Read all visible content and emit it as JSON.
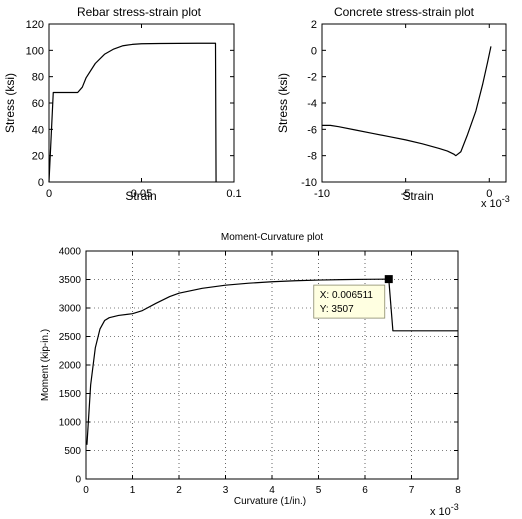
{
  "chart_data": [
    {
      "id": "rebar",
      "type": "line",
      "title": "Rebar stress-strain plot",
      "xlabel": "Strain",
      "ylabel": "Stress (ksi)",
      "xlim": [
        0,
        0.1
      ],
      "ylim": [
        0,
        120
      ],
      "x_ticks": [
        0,
        0.05,
        0.1
      ],
      "x_tick_labels": [
        "0",
        "0.05",
        "0.1"
      ],
      "y_ticks": [
        0,
        20,
        40,
        60,
        80,
        100,
        120
      ],
      "y_tick_labels": [
        "0",
        "20",
        "40",
        "60",
        "80",
        "100",
        "120"
      ],
      "grid": false,
      "series": [
        {
          "color": "#000000",
          "x": [
            0,
            0.0023,
            0.0155,
            0.018,
            0.02,
            0.025,
            0.03,
            0.035,
            0.04,
            0.045,
            0.05,
            0.06,
            0.07,
            0.08,
            0.09,
            0.0903
          ],
          "y": [
            0,
            68,
            68,
            72,
            79,
            90,
            97,
            101,
            103.5,
            104.5,
            105,
            105.2,
            105.3,
            105.4,
            105.4,
            0
          ]
        }
      ]
    },
    {
      "id": "concrete",
      "type": "line",
      "title": "Concrete stress-strain plot",
      "xlabel": "Strain",
      "ylabel": "Stress (ksi)",
      "x_exponent": "x 10",
      "x_exponent_power": "-3",
      "xlim": [
        -10,
        1
      ],
      "ylim": [
        -10,
        2
      ],
      "x_ticks": [
        -10,
        -5,
        0
      ],
      "x_tick_labels": [
        "-10",
        "-5",
        "0"
      ],
      "y_ticks": [
        -10,
        -8,
        -6,
        -4,
        -2,
        0,
        2
      ],
      "y_tick_labels": [
        "-10",
        "-8",
        "-6",
        "-4",
        "-2",
        "0",
        "2"
      ],
      "grid": false,
      "series": [
        {
          "color": "#000000",
          "x": [
            -10,
            -9.5,
            -9,
            -8,
            -7,
            -6,
            -5,
            -4,
            -3,
            -2.5,
            -2.1,
            -2.0,
            -1.7,
            -1.3,
            -0.8,
            -0.4,
            -0.1,
            0.1
          ],
          "y": [
            -5.7,
            -5.7,
            -5.8,
            -6.05,
            -6.3,
            -6.55,
            -6.8,
            -7.1,
            -7.45,
            -7.65,
            -7.9,
            -8.0,
            -7.7,
            -6.4,
            -4.6,
            -2.6,
            -0.9,
            0.3
          ]
        }
      ]
    },
    {
      "id": "moment",
      "type": "line",
      "title": "Moment-Curvature plot",
      "xlabel": "Curvature (1/in.)",
      "ylabel": "Moment (kip-in.)",
      "x_exponent": "x 10",
      "x_exponent_power": "-3",
      "xlim": [
        0,
        8
      ],
      "ylim": [
        0,
        4000
      ],
      "x_ticks": [
        0,
        1,
        2,
        3,
        4,
        5,
        6,
        7,
        8
      ],
      "x_tick_labels": [
        "0",
        "1",
        "2",
        "3",
        "4",
        "5",
        "6",
        "7",
        "8"
      ],
      "y_ticks": [
        0,
        500,
        1000,
        1500,
        2000,
        2500,
        3000,
        3500,
        4000
      ],
      "y_tick_labels": [
        "0",
        "500",
        "1000",
        "1500",
        "2000",
        "2500",
        "3000",
        "3500",
        "4000"
      ],
      "grid": true,
      "series": [
        {
          "color": "#000000",
          "x": [
            0.02,
            0.1,
            0.2,
            0.3,
            0.4,
            0.5,
            0.7,
            1.0,
            1.2,
            1.5,
            1.8,
            2.0,
            2.5,
            3.0,
            3.5,
            4.0,
            4.5,
            5.0,
            5.5,
            6.0,
            6.511,
            6.6,
            8.0
          ],
          "y": [
            600,
            1650,
            2300,
            2630,
            2780,
            2830,
            2870,
            2900,
            2950,
            3080,
            3200,
            3260,
            3345,
            3400,
            3435,
            3460,
            3478,
            3490,
            3498,
            3503,
            3507,
            2600,
            2600
          ]
        }
      ],
      "datatip": {
        "x": 0.006511,
        "y": 3507,
        "x_text": "X: 0.006511",
        "y_text": "Y: 3507"
      }
    }
  ]
}
